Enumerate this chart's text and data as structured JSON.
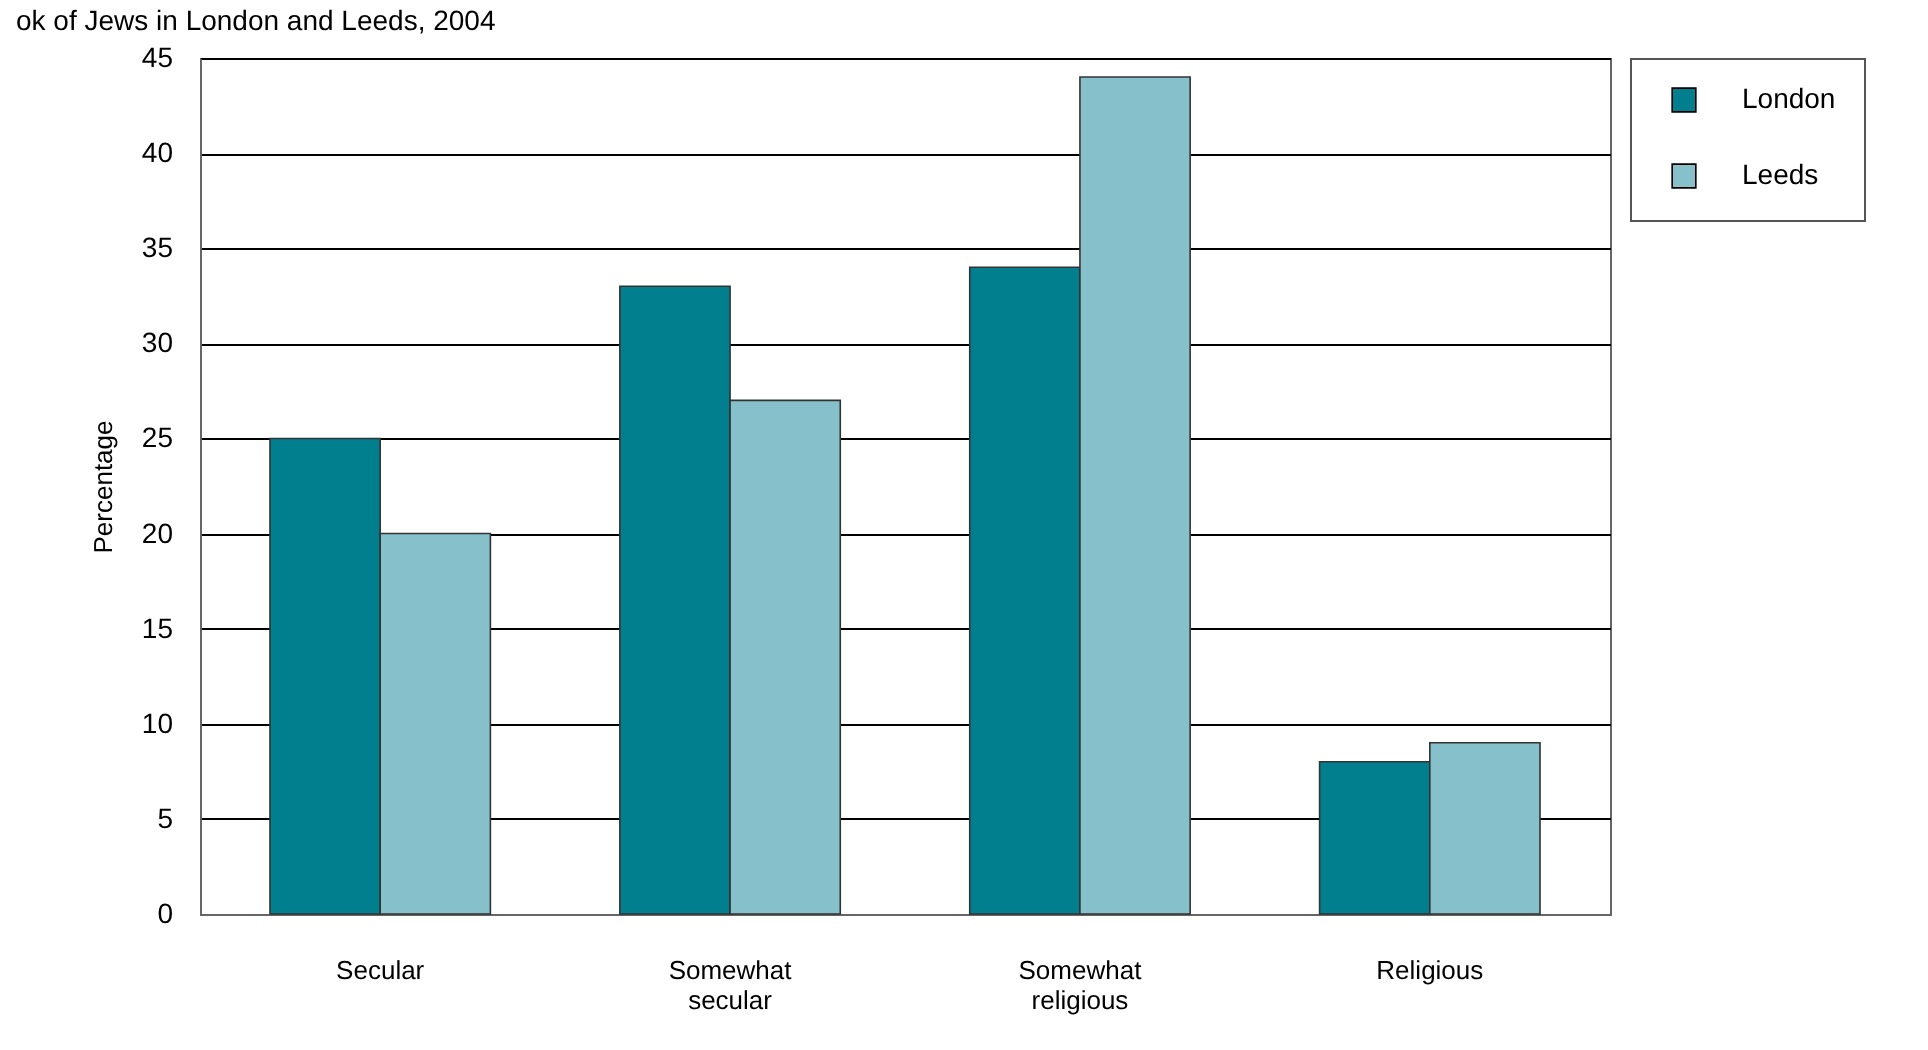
{
  "chart_data": {
    "type": "bar",
    "title": "ok of Jews in London and Leeds, 2004",
    "ylabel": "Percentage",
    "categories": [
      "Secular",
      "Somewhat secular",
      "Somewhat religious",
      "Religious"
    ],
    "series": [
      {
        "name": "London",
        "color": "#017f8f",
        "values": [
          25,
          33,
          34,
          8
        ]
      },
      {
        "name": "Leeds",
        "color": "#86c0cb",
        "values": [
          20,
          27,
          44,
          9
        ]
      }
    ],
    "ylim": [
      0,
      45
    ],
    "yticks": [
      0,
      5,
      10,
      15,
      20,
      25,
      30,
      35,
      40,
      45
    ],
    "grid": "y",
    "legend": "right"
  }
}
